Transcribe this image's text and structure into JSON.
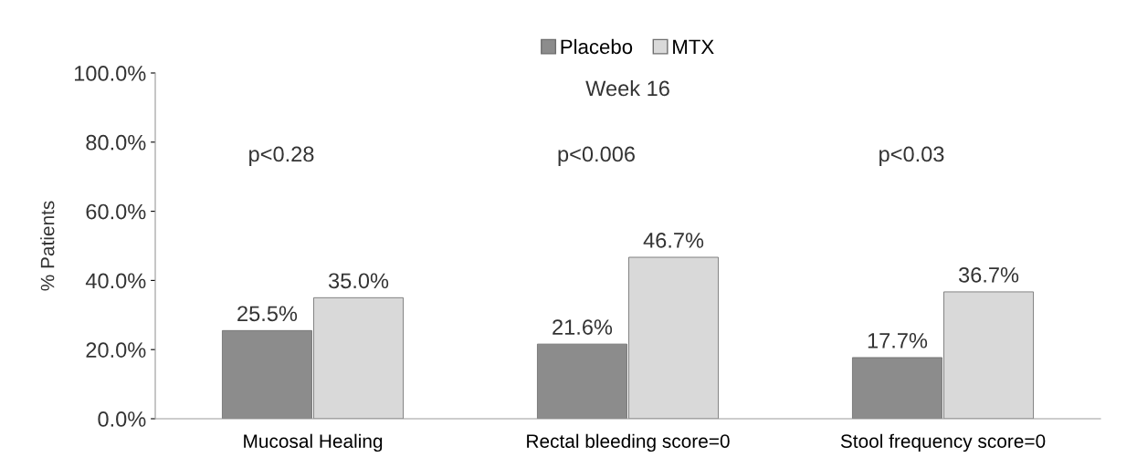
{
  "chart_data": {
    "type": "bar",
    "title": "Week 16",
    "ylabel": "% Patients",
    "categories": [
      "Mucosal Healing",
      "Rectal bleeding score=0",
      "Stool frequency score=0"
    ],
    "series": [
      {
        "name": "Placebo",
        "color": "#8c8c8c",
        "values": [
          25.5,
          21.6,
          17.7
        ],
        "value_labels": [
          "25.5%",
          "21.6%",
          "17.7%"
        ]
      },
      {
        "name": "MTX",
        "color": "#d9d9d9",
        "values": [
          35.0,
          46.7,
          36.7
        ],
        "value_labels": [
          "35.0%",
          "46.7%",
          "36.7%"
        ]
      }
    ],
    "ylim": [
      0,
      100
    ],
    "yticks": [
      {
        "value": 0,
        "label": "0.0%"
      },
      {
        "value": 20,
        "label": "20.0%"
      },
      {
        "value": 40,
        "label": "40.0%"
      },
      {
        "value": 60,
        "label": "60.0%"
      },
      {
        "value": 80,
        "label": "80.0%"
      },
      {
        "value": 100,
        "label": "100.0%"
      }
    ],
    "annotations": [
      "p<0.28",
      "p<0.006",
      "p<0.03"
    ],
    "legend": "top",
    "grid": false
  }
}
